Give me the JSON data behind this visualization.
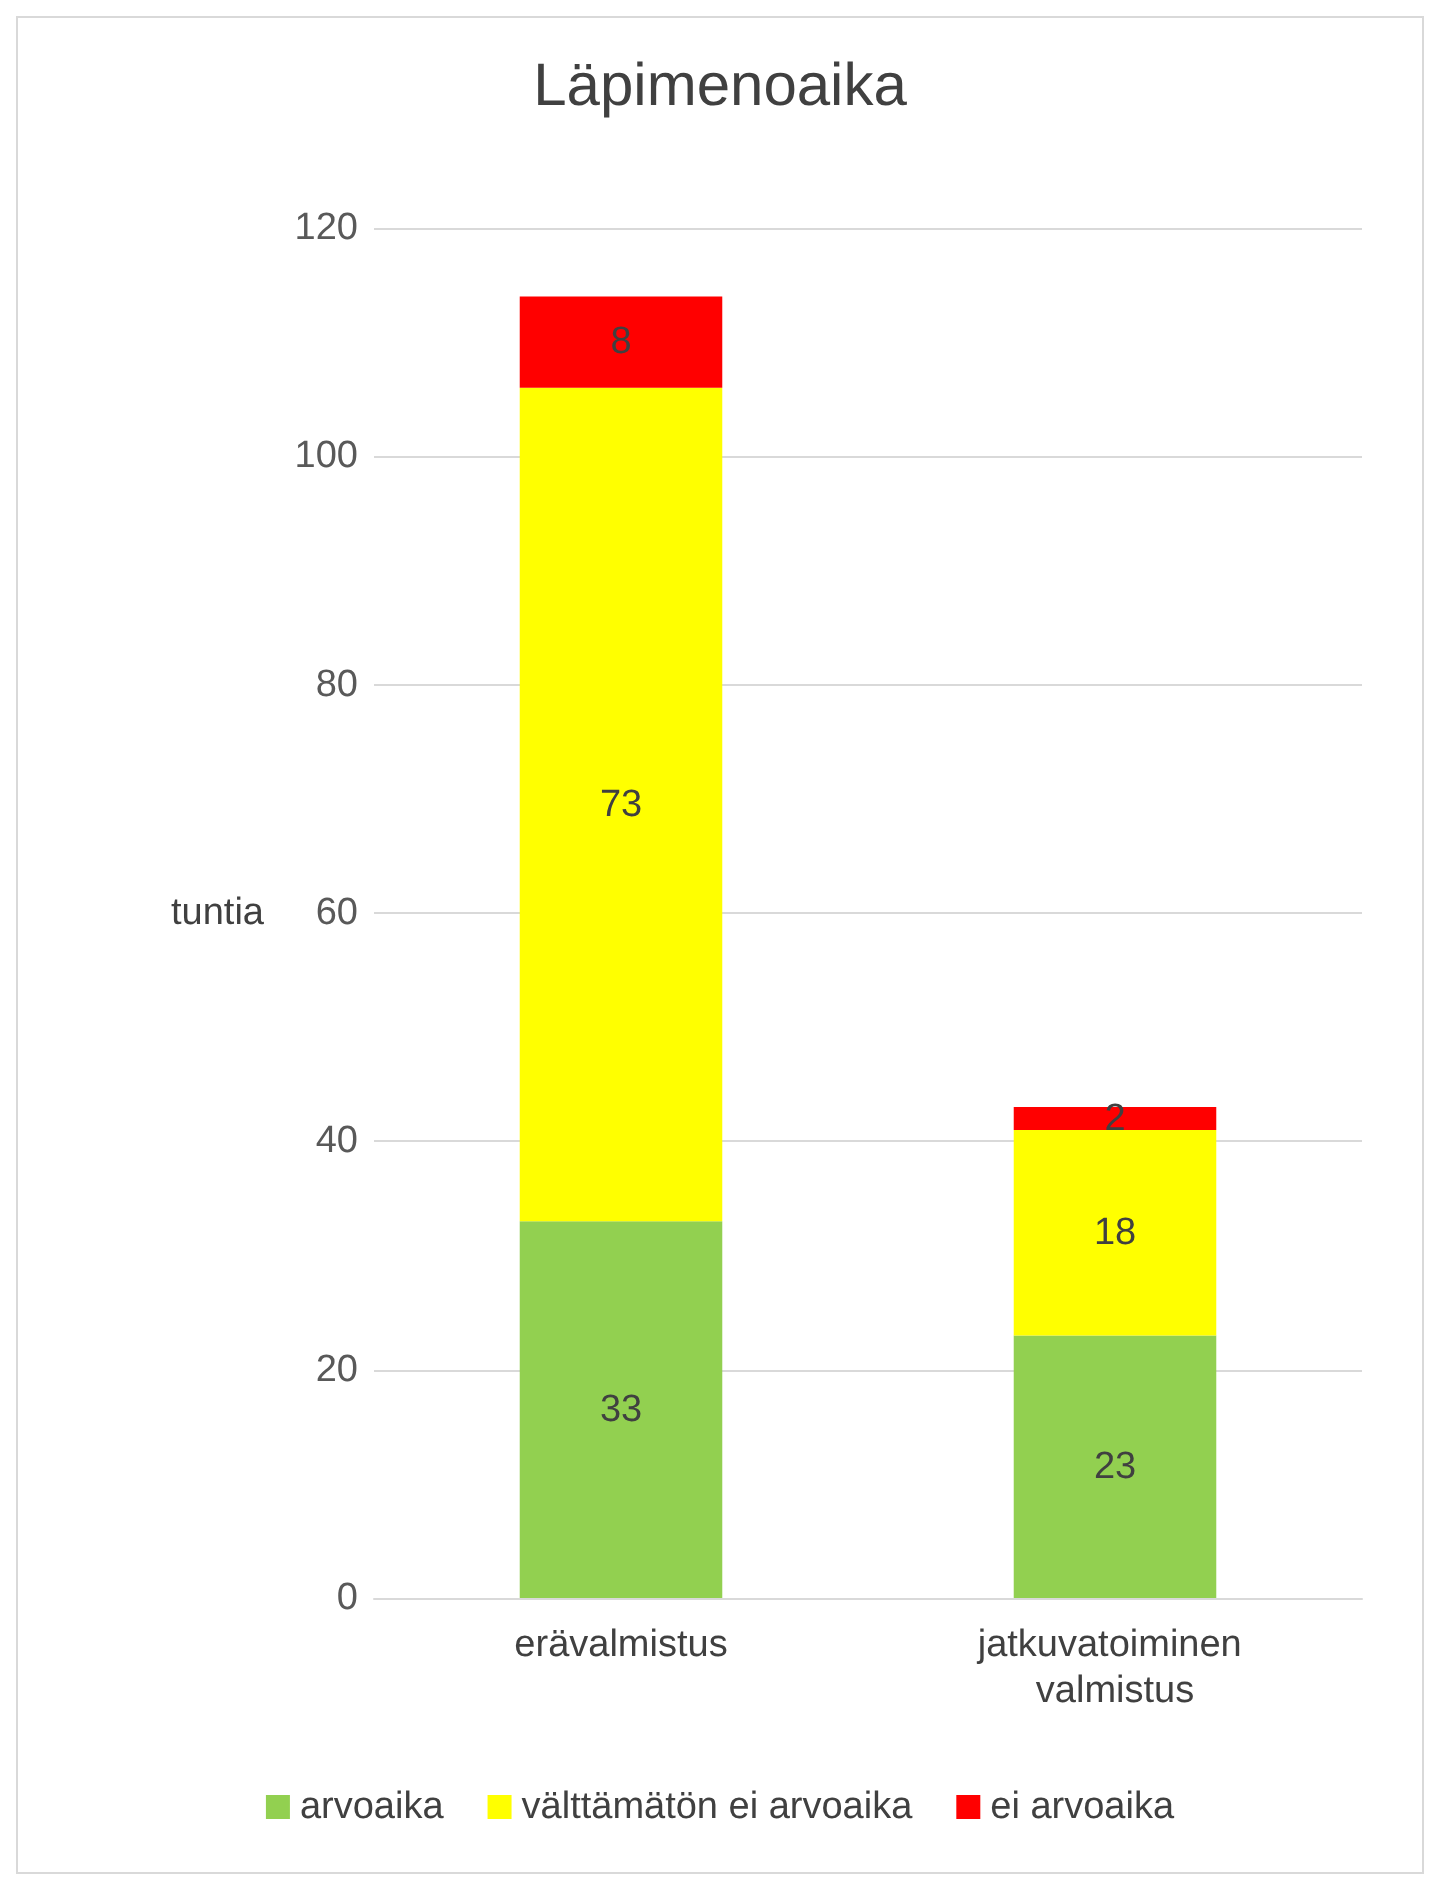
{
  "chart_data": {
    "type": "bar",
    "title": "Läpimenoaika",
    "ylabel": "tuntia",
    "categories": [
      "erävalmistus",
      "jatkuvatoiminen valmistus"
    ],
    "series": [
      {
        "name": "arvoaika",
        "color": "#92d050",
        "values": [
          33,
          23
        ]
      },
      {
        "name": "välttämätön ei arvoaika",
        "color": "#ffff00",
        "values": [
          73,
          18
        ]
      },
      {
        "name": "ei arvoaika",
        "color": "#ff0000",
        "values": [
          8,
          2
        ]
      }
    ],
    "stacked": true,
    "data_labels": true,
    "ylim": [
      0,
      120
    ],
    "yticks": [
      0,
      20,
      40,
      60,
      80,
      100,
      120
    ],
    "grid": "y",
    "legend": "bottom"
  }
}
